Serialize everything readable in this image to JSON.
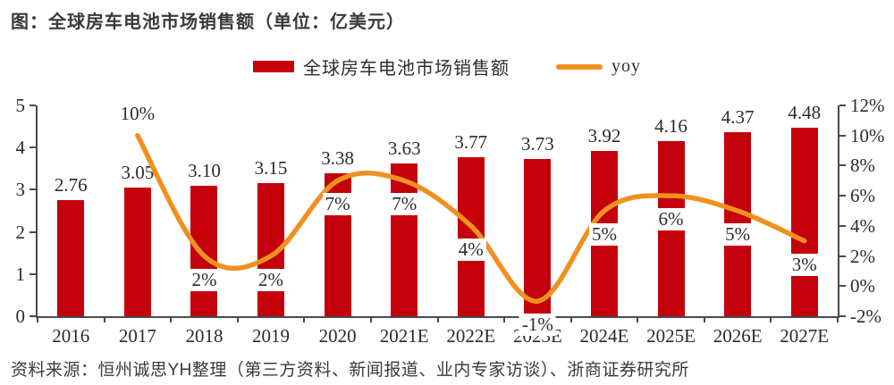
{
  "title": "图：全球房车电池市场销售额（单位：亿美元）",
  "source": "资料来源：恒州诚思YH整理（第三方资料、新闻报道、业内专家访谈）、浙商证券研究所",
  "legend": {
    "bar_label": "全球房车电池市场销售额",
    "line_label": "yoy"
  },
  "colors": {
    "bar": "#c4000c",
    "line": "#f0911f",
    "axis": "#4a4a4a",
    "text": "#2b2b2b"
  },
  "chart_data": {
    "type": "bar+line",
    "title": "全球房车电池市场销售额（单位：亿美元）",
    "categories": [
      "2016",
      "2017",
      "2018",
      "2019",
      "2020",
      "2021E",
      "2022E",
      "2023E",
      "2024E",
      "2025E",
      "2026E",
      "2027E"
    ],
    "grid": false,
    "legend_position": "top-center",
    "series": [
      {
        "name": "全球房车电池市场销售额",
        "type": "bar",
        "axis": "left",
        "values": [
          2.76,
          3.05,
          3.1,
          3.15,
          3.38,
          3.63,
          3.77,
          3.73,
          3.92,
          4.16,
          4.37,
          4.48
        ],
        "labels": [
          "2.76",
          "3.05",
          "3.10",
          "3.15",
          "3.38",
          "3.63",
          "3.77",
          "3.73",
          "3.92",
          "4.16",
          "4.37",
          "4.48"
        ]
      },
      {
        "name": "yoy",
        "type": "line",
        "axis": "right",
        "values": [
          null,
          10,
          2,
          2,
          7,
          7,
          4,
          -1,
          5,
          6,
          5,
          3
        ],
        "labels": [
          null,
          "10%",
          "2%",
          "2%",
          "7%",
          "7%",
          "4%",
          "-1%",
          "5%",
          "6%",
          "5%",
          "3%"
        ],
        "label_placement": [
          null,
          "above",
          "below",
          "below",
          "below",
          "below",
          "below",
          "below",
          "below",
          "below",
          "below",
          "below"
        ]
      }
    ],
    "left_axis": {
      "min": 0,
      "max": 5,
      "ticks": [
        {
          "v": 0,
          "label": "0"
        },
        {
          "v": 1,
          "label": "1"
        },
        {
          "v": 2,
          "label": "2"
        },
        {
          "v": 3,
          "label": "3"
        },
        {
          "v": 4,
          "label": "4"
        },
        {
          "v": 5,
          "label": "5"
        }
      ]
    },
    "right_axis": {
      "min": -2,
      "max": 12,
      "ticks": [
        {
          "v": -2,
          "label": "-2%"
        },
        {
          "v": 0,
          "label": "0%"
        },
        {
          "v": 2,
          "label": "2%"
        },
        {
          "v": 4,
          "label": "4%"
        },
        {
          "v": 6,
          "label": "6%"
        },
        {
          "v": 8,
          "label": "8%"
        },
        {
          "v": 10,
          "label": "10%"
        },
        {
          "v": 12,
          "label": "12%"
        }
      ]
    }
  }
}
